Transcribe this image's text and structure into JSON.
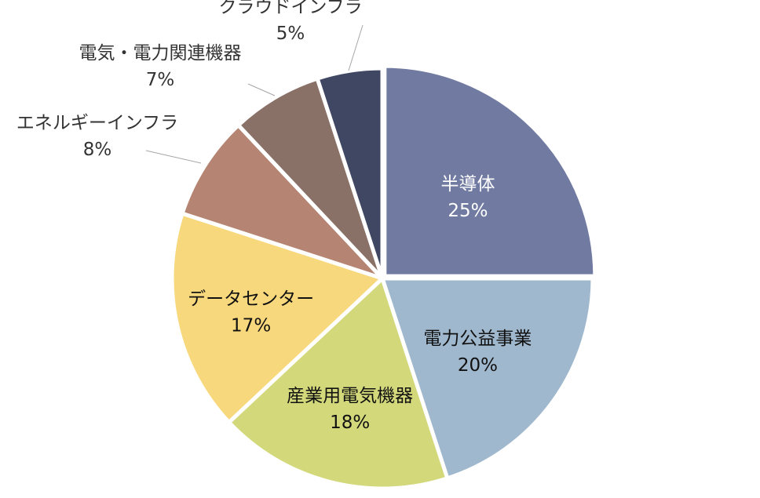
{
  "chart_data": {
    "type": "pie",
    "title": "",
    "categories": [
      "半導体",
      "電力公益事業",
      "産業用電気機器",
      "データセンター",
      "エネルギーインフラ",
      "電気・電力関連機器",
      "クラウドインフラ"
    ],
    "values": [
      25,
      20,
      18,
      17,
      8,
      7,
      5
    ],
    "value_labels": [
      "25%",
      "20%",
      "18%",
      "17%",
      "8%",
      "7%",
      "5%"
    ],
    "colors": [
      "#717ba1",
      "#a0b8cd",
      "#d3d97b",
      "#f8d87c",
      "#b58472",
      "#8a7168",
      "#3f4763"
    ],
    "start_angle_deg": 0,
    "direction": "clockwise",
    "label_positions": [
      "inside",
      "inside",
      "inside",
      "inside",
      "outside",
      "outside",
      "outside"
    ],
    "legend": "none"
  }
}
